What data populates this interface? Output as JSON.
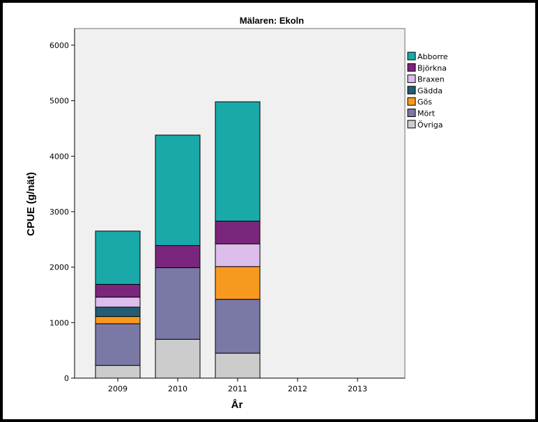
{
  "chart_data": {
    "type": "bar",
    "stacked": true,
    "title": "Mälaren: Ekoln",
    "xlabel": "År",
    "ylabel": "CPUE (g/nät)",
    "categories": [
      "2009",
      "2010",
      "2011",
      "2012",
      "2013"
    ],
    "ylim": [
      0,
      6300
    ],
    "yticks": [
      0,
      1000,
      2000,
      3000,
      4000,
      5000,
      6000
    ],
    "ytick_labels": [
      "0",
      "1000",
      "2000",
      "3000",
      "4000",
      "5000",
      "6000"
    ],
    "plot_background": "#f0f0f0",
    "grid": false,
    "legend_position": "right",
    "series": [
      {
        "name": "Övriga",
        "color": "#cccccc",
        "values": [
          230,
          700,
          450,
          null,
          null
        ]
      },
      {
        "name": "Mört",
        "color": "#7a79a6",
        "values": [
          750,
          1290,
          970,
          null,
          null
        ]
      },
      {
        "name": "Gös",
        "color": "#f7991f",
        "values": [
          130,
          0,
          590,
          null,
          null
        ]
      },
      {
        "name": "Gädda",
        "color": "#245c72",
        "values": [
          170,
          0,
          0,
          null,
          null
        ]
      },
      {
        "name": "Braxen",
        "color": "#dcbdeb",
        "values": [
          180,
          0,
          410,
          null,
          null
        ]
      },
      {
        "name": "Björkna",
        "color": "#7b267d",
        "values": [
          230,
          400,
          410,
          null,
          null
        ]
      },
      {
        "name": "Abborre",
        "color": "#1aa9a9",
        "values": [
          960,
          1990,
          2150,
          null,
          null
        ]
      }
    ],
    "legend_order": [
      "Abborre",
      "Björkna",
      "Braxen",
      "Gädda",
      "Gös",
      "Mört",
      "Övriga"
    ]
  }
}
